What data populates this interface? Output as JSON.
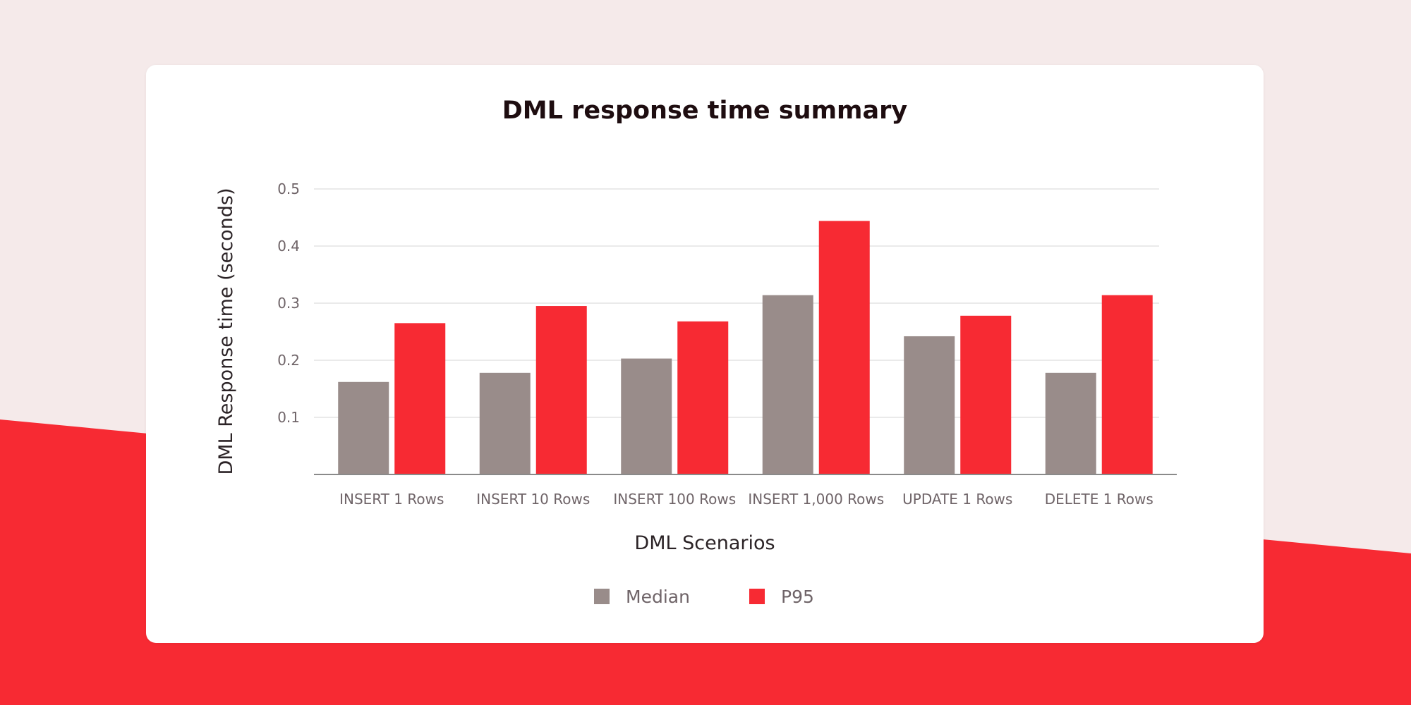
{
  "colors": {
    "page_background": "#f5eaea",
    "accent_band": "#f72a33",
    "card": "#ffffff",
    "median": "#998c8a",
    "p95": "#f72a33",
    "grid": "#e3e3e3",
    "axis": "#8a8a8a"
  },
  "chart_data": {
    "type": "bar",
    "title": "DML response time summary",
    "xlabel": "DML Scenarios",
    "ylabel": "DML Response time (seconds)",
    "ylim": [
      0,
      0.5
    ],
    "yticks": [
      0.1,
      0.2,
      0.3,
      0.4,
      0.5
    ],
    "grid": true,
    "legend_position": "bottom",
    "categories": [
      "INSERT 1 Rows",
      "INSERT 10 Rows",
      "INSERT 100 Rows",
      "INSERT 1,000 Rows",
      "UPDATE 1 Rows",
      "DELETE 1 Rows"
    ],
    "series": [
      {
        "name": "Median",
        "color": "#998c8a",
        "values": [
          0.162,
          0.178,
          0.203,
          0.314,
          0.242,
          0.178
        ]
      },
      {
        "name": "P95",
        "color": "#f72a33",
        "values": [
          0.265,
          0.295,
          0.268,
          0.444,
          0.278,
          0.314
        ]
      }
    ]
  }
}
